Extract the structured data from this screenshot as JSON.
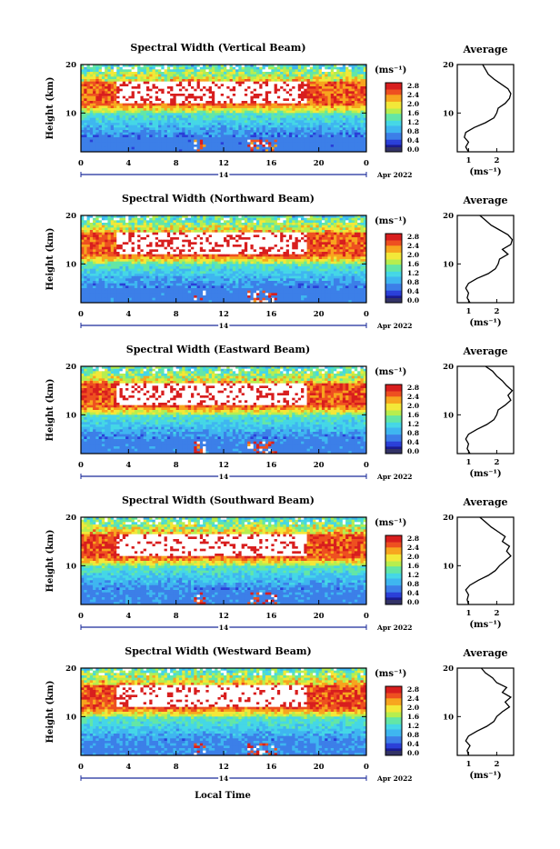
{
  "figure": {
    "xlabel": "Local Time",
    "date_day": "14",
    "date_month": "Apr 2022",
    "colorbar_unit": "(ms⁻¹)",
    "colorbar_ticks": [
      "2.8",
      "2.4",
      "2.0",
      "1.6",
      "1.2",
      "0.8",
      "0.4",
      "0.0"
    ],
    "colormap": [
      "#1b1b8f",
      "#2a3fd8",
      "#3c7fe8",
      "#3fb6f0",
      "#45d7e6",
      "#63e6a6",
      "#b7ee4f",
      "#f3e838",
      "#f7a51e",
      "#ee5020",
      "#d81e1e"
    ],
    "avg_title": "Average",
    "avg_xlabel": "(ms⁻¹)"
  },
  "chart_data": [
    {
      "type": "heatmap",
      "title": "Spectral Width (Vertical Beam)",
      "xlabel": "Local Time",
      "ylabel": "Height (km)",
      "x_ticks": [
        "0",
        "4",
        "8",
        "12",
        "16",
        "20",
        "0"
      ],
      "y_ticks": [
        "20",
        "10"
      ],
      "xlim": [
        0,
        24
      ],
      "ylim": [
        2,
        20
      ],
      "value_range": [
        0.0,
        2.8
      ],
      "profile": {
        "title": "Average",
        "xlabel": "(ms⁻¹)",
        "x_ticks": [
          "1",
          "2"
        ],
        "y_ticks": [
          "20",
          "10"
        ],
        "xlim": [
          0.6,
          2.6
        ],
        "points": [
          [
            1.0,
            2
          ],
          [
            0.9,
            3
          ],
          [
            1.0,
            4
          ],
          [
            0.85,
            5
          ],
          [
            0.9,
            6
          ],
          [
            1.2,
            7
          ],
          [
            1.6,
            8
          ],
          [
            1.9,
            9
          ],
          [
            2.0,
            10
          ],
          [
            2.05,
            11
          ],
          [
            2.3,
            12
          ],
          [
            2.45,
            13
          ],
          [
            2.5,
            14
          ],
          [
            2.4,
            15
          ],
          [
            2.15,
            16
          ],
          [
            1.9,
            17
          ],
          [
            1.7,
            18
          ],
          [
            1.6,
            19
          ],
          [
            1.5,
            20
          ]
        ]
      }
    },
    {
      "type": "heatmap",
      "title": "Spectral Width (Northward Beam)",
      "xlabel": "Local Time",
      "ylabel": "Height (km)",
      "x_ticks": [
        "0",
        "4",
        "8",
        "12",
        "16",
        "20",
        "0"
      ],
      "y_ticks": [
        "20",
        "10"
      ],
      "xlim": [
        0,
        24
      ],
      "ylim": [
        2,
        20
      ],
      "value_range": [
        0.0,
        2.8
      ],
      "profile": {
        "title": "Average",
        "xlabel": "(ms⁻¹)",
        "x_ticks": [
          "1",
          "2"
        ],
        "y_ticks": [
          "20",
          "10"
        ],
        "xlim": [
          0.6,
          2.6
        ],
        "points": [
          [
            1.05,
            2
          ],
          [
            0.95,
            3
          ],
          [
            1.0,
            4
          ],
          [
            0.9,
            5
          ],
          [
            1.0,
            6
          ],
          [
            1.3,
            7
          ],
          [
            1.7,
            8
          ],
          [
            1.95,
            9
          ],
          [
            2.05,
            10
          ],
          [
            2.1,
            11
          ],
          [
            2.4,
            12
          ],
          [
            2.2,
            13
          ],
          [
            2.5,
            14
          ],
          [
            2.55,
            15
          ],
          [
            2.4,
            16
          ],
          [
            2.1,
            17
          ],
          [
            1.8,
            18
          ],
          [
            1.6,
            19
          ],
          [
            1.4,
            20
          ]
        ]
      }
    },
    {
      "type": "heatmap",
      "title": "Spectral Width (Eastward Beam)",
      "xlabel": "Local Time",
      "ylabel": "Height (km)",
      "x_ticks": [
        "0",
        "4",
        "8",
        "12",
        "16",
        "20",
        "0"
      ],
      "y_ticks": [
        "20",
        "10"
      ],
      "xlim": [
        0,
        24
      ],
      "ylim": [
        2,
        20
      ],
      "value_range": [
        0.0,
        2.8
      ],
      "profile": {
        "title": "Average",
        "xlabel": "(ms⁻¹)",
        "x_ticks": [
          "1",
          "2"
        ],
        "y_ticks": [
          "20",
          "10"
        ],
        "xlim": [
          0.6,
          2.6
        ],
        "points": [
          [
            1.05,
            2
          ],
          [
            0.95,
            3
          ],
          [
            1.0,
            4
          ],
          [
            0.9,
            5
          ],
          [
            1.0,
            6
          ],
          [
            1.3,
            7
          ],
          [
            1.65,
            8
          ],
          [
            1.9,
            9
          ],
          [
            2.0,
            10
          ],
          [
            2.05,
            11
          ],
          [
            2.3,
            12
          ],
          [
            2.5,
            13
          ],
          [
            2.4,
            14
          ],
          [
            2.55,
            15
          ],
          [
            2.35,
            16
          ],
          [
            2.2,
            17
          ],
          [
            2.0,
            18
          ],
          [
            1.85,
            19
          ],
          [
            1.6,
            20
          ]
        ]
      }
    },
    {
      "type": "heatmap",
      "title": "Spectral Width (Southward Beam)",
      "xlabel": "Local Time",
      "ylabel": "Height (km)",
      "x_ticks": [
        "0",
        "4",
        "8",
        "12",
        "16",
        "20",
        "0"
      ],
      "y_ticks": [
        "20",
        "10"
      ],
      "xlim": [
        0,
        24
      ],
      "ylim": [
        2,
        20
      ],
      "value_range": [
        0.0,
        2.8
      ],
      "profile": {
        "title": "Average",
        "xlabel": "(ms⁻¹)",
        "x_ticks": [
          "1",
          "2"
        ],
        "y_ticks": [
          "20",
          "10"
        ],
        "xlim": [
          0.6,
          2.6
        ],
        "points": [
          [
            1.0,
            2
          ],
          [
            0.95,
            3
          ],
          [
            1.0,
            4
          ],
          [
            0.9,
            5
          ],
          [
            1.05,
            6
          ],
          [
            1.35,
            7
          ],
          [
            1.7,
            8
          ],
          [
            1.95,
            9
          ],
          [
            2.1,
            10
          ],
          [
            2.3,
            11
          ],
          [
            2.5,
            12
          ],
          [
            2.35,
            13
          ],
          [
            2.45,
            14
          ],
          [
            2.2,
            15
          ],
          [
            2.3,
            16
          ],
          [
            2.05,
            17
          ],
          [
            1.8,
            18
          ],
          [
            1.6,
            19
          ],
          [
            1.4,
            20
          ]
        ]
      }
    },
    {
      "type": "heatmap",
      "title": "Spectral Width (Westward Beam)",
      "xlabel": "Local Time",
      "ylabel": "Height (km)",
      "x_ticks": [
        "0",
        "4",
        "8",
        "12",
        "16",
        "20",
        "0"
      ],
      "y_ticks": [
        "20",
        "10"
      ],
      "xlim": [
        0,
        24
      ],
      "ylim": [
        2,
        20
      ],
      "value_range": [
        0.0,
        2.8
      ],
      "profile": {
        "title": "Average",
        "xlabel": "(ms⁻¹)",
        "x_ticks": [
          "1",
          "2"
        ],
        "y_ticks": [
          "20",
          "10"
        ],
        "xlim": [
          0.6,
          2.6
        ],
        "points": [
          [
            1.0,
            2
          ],
          [
            0.95,
            3
          ],
          [
            1.05,
            4
          ],
          [
            0.9,
            5
          ],
          [
            1.0,
            6
          ],
          [
            1.3,
            7
          ],
          [
            1.65,
            8
          ],
          [
            1.9,
            9
          ],
          [
            2.0,
            10
          ],
          [
            2.2,
            11
          ],
          [
            2.45,
            12
          ],
          [
            2.3,
            13
          ],
          [
            2.5,
            14
          ],
          [
            2.2,
            15
          ],
          [
            2.35,
            16
          ],
          [
            2.0,
            17
          ],
          [
            1.85,
            18
          ],
          [
            1.6,
            19
          ],
          [
            1.45,
            20
          ]
        ]
      }
    }
  ]
}
